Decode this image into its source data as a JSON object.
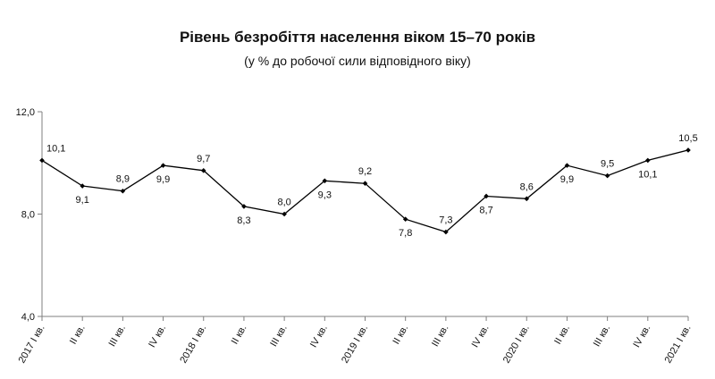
{
  "chart_data": {
    "type": "line",
    "title": "Рівень безробіття населення віком 15–70 років",
    "subtitle": "(у % до робочої сили відповідного віку)",
    "xlabel": "",
    "ylabel": "",
    "ylim": [
      4.0,
      12.0
    ],
    "yticks": [
      "4,0",
      "8,0",
      "12,0"
    ],
    "ytick_values": [
      4,
      8,
      12
    ],
    "grid": false,
    "legend": "none",
    "color": "#000000",
    "categories": [
      "2017 І кв.",
      "ІІ кв.",
      "ІІІ кв.",
      "IV кв.",
      "2018 І кв.",
      "ІІ кв.",
      "ІІІ кв.",
      "IV кв.",
      "2019 І кв.",
      "ІІ кв.",
      "ІІІ кв.",
      "IV кв.",
      "2020 І кв.",
      "ІІ кв.",
      "ІІІ кв.",
      "IV кв.",
      "2021 І кв."
    ],
    "values": [
      10.1,
      9.1,
      8.9,
      9.9,
      9.7,
      8.3,
      8.0,
      9.3,
      9.2,
      7.8,
      7.3,
      8.7,
      8.6,
      9.9,
      9.5,
      10.1,
      10.5
    ],
    "value_labels": [
      "10,1",
      "9,1",
      "8,9",
      "9,9",
      "9,7",
      "8,3",
      "8,0",
      "9,3",
      "9,2",
      "7,8",
      "7,3",
      "8,7",
      "8,6",
      "9,9",
      "9,5",
      "10,1",
      "10,5"
    ],
    "label_positions": [
      "above",
      "below",
      "above",
      "below",
      "above",
      "below",
      "above",
      "below",
      "above",
      "below",
      "above",
      "below",
      "above",
      "below",
      "above",
      "below",
      "above"
    ]
  }
}
